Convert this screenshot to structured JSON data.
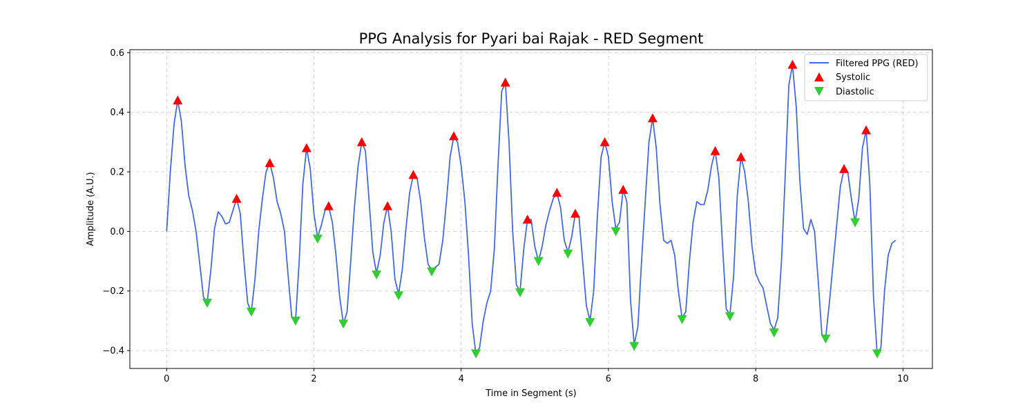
{
  "chart_data": {
    "type": "line",
    "title": "PPG Analysis for Pyari bai Rajak - RED Segment",
    "xlabel": "Time in Segment (s)",
    "ylabel": "Amplitude (A.U.)",
    "xlim": [
      -0.5,
      10.4
    ],
    "ylim": [
      -0.46,
      0.61
    ],
    "xticks": [
      0,
      2,
      4,
      6,
      8,
      10
    ],
    "yticks": [
      -0.4,
      -0.2,
      0.0,
      0.2,
      0.4,
      0.6
    ],
    "xtick_labels": [
      "0",
      "2",
      "4",
      "6",
      "8",
      "10"
    ],
    "ytick_labels": [
      "−0.4",
      "−0.2",
      "0.0",
      "0.2",
      "0.4",
      "0.6"
    ],
    "grid": true,
    "legend_position": "top-right",
    "colors": {
      "line": "#4169e1",
      "systolic": "#ff0000",
      "diastolic": "#32cd32"
    },
    "series": [
      {
        "name": "Filtered PPG (RED)",
        "kind": "line",
        "points": [
          [
            0.0,
            0.0
          ],
          [
            0.05,
            0.2
          ],
          [
            0.1,
            0.36
          ],
          [
            0.15,
            0.44
          ],
          [
            0.2,
            0.37
          ],
          [
            0.25,
            0.22
          ],
          [
            0.3,
            0.12
          ],
          [
            0.35,
            0.07
          ],
          [
            0.4,
            0.0
          ],
          [
            0.45,
            -0.11
          ],
          [
            0.5,
            -0.22
          ],
          [
            0.55,
            -0.24
          ],
          [
            0.6,
            -0.13
          ],
          [
            0.65,
            0.01
          ],
          [
            0.7,
            0.066
          ],
          [
            0.75,
            0.05
          ],
          [
            0.8,
            0.025
          ],
          [
            0.85,
            0.03
          ],
          [
            0.9,
            0.07
          ],
          [
            0.95,
            0.11
          ],
          [
            1.0,
            0.06
          ],
          [
            1.05,
            -0.1
          ],
          [
            1.1,
            -0.24
          ],
          [
            1.15,
            -0.27
          ],
          [
            1.2,
            -0.16
          ],
          [
            1.25,
            0.0
          ],
          [
            1.3,
            0.11
          ],
          [
            1.35,
            0.2
          ],
          [
            1.4,
            0.23
          ],
          [
            1.45,
            0.18
          ],
          [
            1.5,
            0.1
          ],
          [
            1.55,
            0.06
          ],
          [
            1.6,
            0.0
          ],
          [
            1.65,
            -0.15
          ],
          [
            1.7,
            -0.29
          ],
          [
            1.75,
            -0.3
          ],
          [
            1.8,
            -0.1
          ],
          [
            1.85,
            0.16
          ],
          [
            1.9,
            0.28
          ],
          [
            1.95,
            0.21
          ],
          [
            2.0,
            0.06
          ],
          [
            2.05,
            -0.02
          ],
          [
            2.1,
            0.02
          ],
          [
            2.15,
            0.07
          ],
          [
            2.2,
            0.085
          ],
          [
            2.25,
            0.03
          ],
          [
            2.3,
            -0.08
          ],
          [
            2.35,
            -0.22
          ],
          [
            2.4,
            -0.31
          ],
          [
            2.45,
            -0.27
          ],
          [
            2.5,
            -0.1
          ],
          [
            2.55,
            0.08
          ],
          [
            2.6,
            0.22
          ],
          [
            2.65,
            0.3
          ],
          [
            2.7,
            0.27
          ],
          [
            2.75,
            0.1
          ],
          [
            2.8,
            -0.07
          ],
          [
            2.85,
            -0.14
          ],
          [
            2.9,
            -0.08
          ],
          [
            2.95,
            0.03
          ],
          [
            3.0,
            0.085
          ],
          [
            3.05,
            0.0
          ],
          [
            3.1,
            -0.16
          ],
          [
            3.15,
            -0.21
          ],
          [
            3.2,
            -0.13
          ],
          [
            3.25,
            0.01
          ],
          [
            3.3,
            0.13
          ],
          [
            3.35,
            0.19
          ],
          [
            3.4,
            0.18
          ],
          [
            3.45,
            0.1
          ],
          [
            3.5,
            -0.02
          ],
          [
            3.55,
            -0.11
          ],
          [
            3.6,
            -0.13
          ],
          [
            3.65,
            -0.12
          ],
          [
            3.7,
            -0.11
          ],
          [
            3.75,
            -0.03
          ],
          [
            3.8,
            0.1
          ],
          [
            3.85,
            0.25
          ],
          [
            3.9,
            0.32
          ],
          [
            3.95,
            0.3
          ],
          [
            4.0,
            0.22
          ],
          [
            4.05,
            0.1
          ],
          [
            4.1,
            -0.08
          ],
          [
            4.15,
            -0.31
          ],
          [
            4.2,
            -0.41
          ],
          [
            4.25,
            -0.39
          ],
          [
            4.3,
            -0.3
          ],
          [
            4.35,
            -0.24
          ],
          [
            4.4,
            -0.2
          ],
          [
            4.45,
            -0.06
          ],
          [
            4.5,
            0.22
          ],
          [
            4.55,
            0.47
          ],
          [
            4.6,
            0.5
          ],
          [
            4.65,
            0.3
          ],
          [
            4.7,
            0.0
          ],
          [
            4.75,
            -0.18
          ],
          [
            4.8,
            -0.2
          ],
          [
            4.85,
            -0.06
          ],
          [
            4.9,
            0.04
          ],
          [
            4.95,
            0.04
          ],
          [
            5.0,
            -0.05
          ],
          [
            5.05,
            -0.1
          ],
          [
            5.1,
            -0.05
          ],
          [
            5.15,
            0.02
          ],
          [
            5.2,
            0.07
          ],
          [
            5.25,
            0.11
          ],
          [
            5.3,
            0.13
          ],
          [
            5.35,
            0.08
          ],
          [
            5.4,
            -0.03
          ],
          [
            5.45,
            -0.07
          ],
          [
            5.5,
            -0.02
          ],
          [
            5.55,
            0.06
          ],
          [
            5.6,
            0.05
          ],
          [
            5.65,
            -0.1
          ],
          [
            5.7,
            -0.25
          ],
          [
            5.75,
            -0.3
          ],
          [
            5.8,
            -0.2
          ],
          [
            5.85,
            0.05
          ],
          [
            5.9,
            0.25
          ],
          [
            5.95,
            0.3
          ],
          [
            6.0,
            0.25
          ],
          [
            6.05,
            0.1
          ],
          [
            6.1,
            0.01
          ],
          [
            6.15,
            0.03
          ],
          [
            6.2,
            0.14
          ],
          [
            6.25,
            0.1
          ],
          [
            6.3,
            -0.23
          ],
          [
            6.35,
            -0.38
          ],
          [
            6.4,
            -0.32
          ],
          [
            6.45,
            -0.1
          ],
          [
            6.5,
            0.1
          ],
          [
            6.55,
            0.3
          ],
          [
            6.6,
            0.38
          ],
          [
            6.65,
            0.28
          ],
          [
            6.7,
            0.09
          ],
          [
            6.75,
            -0.03
          ],
          [
            6.8,
            -0.04
          ],
          [
            6.85,
            -0.03
          ],
          [
            6.9,
            -0.08
          ],
          [
            6.95,
            -0.2
          ],
          [
            7.0,
            -0.29
          ],
          [
            7.05,
            -0.27
          ],
          [
            7.1,
            -0.1
          ],
          [
            7.15,
            0.03
          ],
          [
            7.2,
            0.1
          ],
          [
            7.25,
            0.09
          ],
          [
            7.3,
            0.09
          ],
          [
            7.35,
            0.14
          ],
          [
            7.4,
            0.22
          ],
          [
            7.45,
            0.27
          ],
          [
            7.5,
            0.18
          ],
          [
            7.55,
            -0.05
          ],
          [
            7.6,
            -0.26
          ],
          [
            7.65,
            -0.28
          ],
          [
            7.7,
            -0.15
          ],
          [
            7.75,
            0.12
          ],
          [
            7.8,
            0.25
          ],
          [
            7.85,
            0.2
          ],
          [
            7.9,
            0.1
          ],
          [
            7.95,
            -0.05
          ],
          [
            8.0,
            -0.14
          ],
          [
            8.05,
            -0.17
          ],
          [
            8.1,
            -0.19
          ],
          [
            8.15,
            -0.25
          ],
          [
            8.2,
            -0.31
          ],
          [
            8.25,
            -0.33
          ],
          [
            8.3,
            -0.29
          ],
          [
            8.35,
            -0.1
          ],
          [
            8.4,
            0.18
          ],
          [
            8.45,
            0.49
          ],
          [
            8.5,
            0.56
          ],
          [
            8.55,
            0.42
          ],
          [
            8.6,
            0.17
          ],
          [
            8.65,
            0.01
          ],
          [
            8.7,
            -0.01
          ],
          [
            8.75,
            0.04
          ],
          [
            8.8,
            0.0
          ],
          [
            8.85,
            -0.17
          ],
          [
            8.9,
            -0.35
          ],
          [
            8.95,
            -0.36
          ],
          [
            9.0,
            -0.24
          ],
          [
            9.05,
            -0.11
          ],
          [
            9.1,
            0.02
          ],
          [
            9.15,
            0.15
          ],
          [
            9.2,
            0.21
          ],
          [
            9.25,
            0.2
          ],
          [
            9.3,
            0.11
          ],
          [
            9.35,
            0.03
          ],
          [
            9.4,
            0.11
          ],
          [
            9.45,
            0.28
          ],
          [
            9.5,
            0.34
          ],
          [
            9.55,
            0.16
          ],
          [
            9.6,
            -0.22
          ],
          [
            9.65,
            -0.41
          ],
          [
            9.7,
            -0.39
          ],
          [
            9.75,
            -0.2
          ],
          [
            9.8,
            -0.08
          ],
          [
            9.85,
            -0.04
          ],
          [
            9.9,
            -0.03
          ]
        ]
      },
      {
        "name": "Systolic",
        "kind": "markers-up",
        "points": [
          [
            0.15,
            0.44
          ],
          [
            0.95,
            0.11
          ],
          [
            1.4,
            0.23
          ],
          [
            1.9,
            0.28
          ],
          [
            2.2,
            0.085
          ],
          [
            2.65,
            0.3
          ],
          [
            3.0,
            0.085
          ],
          [
            3.35,
            0.19
          ],
          [
            3.9,
            0.32
          ],
          [
            4.6,
            0.5
          ],
          [
            4.9,
            0.04
          ],
          [
            5.3,
            0.13
          ],
          [
            5.55,
            0.06
          ],
          [
            5.95,
            0.3
          ],
          [
            6.2,
            0.14
          ],
          [
            6.6,
            0.38
          ],
          [
            7.45,
            0.27
          ],
          [
            7.8,
            0.25
          ],
          [
            8.5,
            0.56
          ],
          [
            9.2,
            0.21
          ],
          [
            9.5,
            0.34
          ]
        ]
      },
      {
        "name": "Diastolic",
        "kind": "markers-down",
        "points": [
          [
            0.55,
            -0.24
          ],
          [
            1.15,
            -0.27
          ],
          [
            1.75,
            -0.3
          ],
          [
            2.05,
            -0.025
          ],
          [
            2.4,
            -0.31
          ],
          [
            2.85,
            -0.145
          ],
          [
            3.15,
            -0.215
          ],
          [
            3.6,
            -0.135
          ],
          [
            4.2,
            -0.41
          ],
          [
            4.8,
            -0.205
          ],
          [
            5.05,
            -0.1
          ],
          [
            5.45,
            -0.075
          ],
          [
            5.75,
            -0.305
          ],
          [
            6.1,
            0.0
          ],
          [
            6.35,
            -0.385
          ],
          [
            7.0,
            -0.295
          ],
          [
            7.65,
            -0.285
          ],
          [
            8.25,
            -0.34
          ],
          [
            8.95,
            -0.36
          ],
          [
            9.35,
            0.03
          ],
          [
            9.65,
            -0.41
          ]
        ]
      }
    ]
  }
}
